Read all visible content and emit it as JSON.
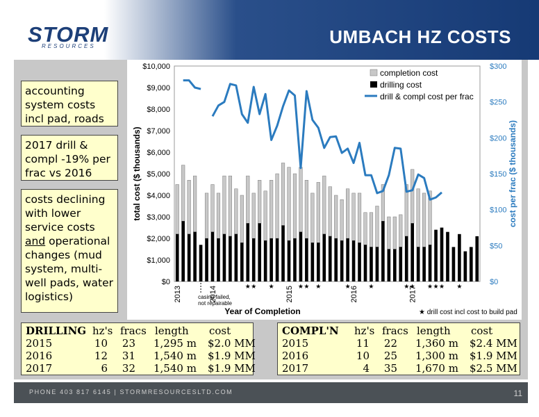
{
  "header": {
    "logo": "STORM",
    "logo_sub": "RESOURCES",
    "title": "UMBACH HZ COSTS"
  },
  "notes": [
    "accounting system costs incl pad, roads",
    "2017 drill & compl -19% per frac vs 2016",
    "costs declining with lower service costs and operational changes (mud system, multi-well pads, water logistics)"
  ],
  "chart_data": {
    "type": "bar",
    "xlabel": "Year of Completion",
    "ylabel": "total cost ($ thousands)",
    "y2label": "cost per frac ($ thousands)",
    "ylim": [
      0,
      10000
    ],
    "y2lim": [
      0,
      300
    ],
    "yticks": [
      "$0",
      "$1,000",
      "$2,000",
      "$3,000",
      "$4,000",
      "$5,000",
      "$6,000",
      "$7,000",
      "$8,000",
      "$9,000",
      "$10,000"
    ],
    "y2ticks": [
      "$0",
      "$50",
      "$100",
      "$150",
      "$200",
      "$250",
      "$300"
    ],
    "year_labels": [
      "2013",
      "2014",
      "2015",
      "2016",
      "2017"
    ],
    "year_positions": [
      0,
      6,
      19,
      30,
      40
    ],
    "annotation": "casing failed, not repairable",
    "footnote": "drill cost incl cost to build pad",
    "star_symbol": "★",
    "legend": [
      "completion cost",
      "drilling cost",
      "drill & compl cost per frac"
    ],
    "colors": {
      "completion": "#c8c8c8",
      "drilling": "#000000",
      "per_frac": "#2b7bbf"
    },
    "drilling": [
      2200,
      2800,
      2200,
      2300,
      1700,
      2000,
      2300,
      2000,
      2200,
      2100,
      2200,
      1800,
      2700,
      2000,
      2700,
      1900,
      2000,
      2000,
      2600,
      1900,
      2000,
      2300,
      2000,
      1800,
      1800,
      2200,
      2100,
      2000,
      1900,
      2000,
      1900,
      1800,
      1700,
      1600,
      1600,
      2800,
      1500,
      1500,
      1600,
      2100,
      2700,
      1600,
      1600,
      1700,
      2400,
      2500,
      2300,
      1600,
      2200,
      1400,
      1600,
      2100
    ],
    "total": [
      4500,
      5400,
      4700,
      4900,
      1700,
      4100,
      4500,
      4100,
      4900,
      4900,
      4300,
      4000,
      4900,
      4100,
      4700,
      4200,
      4700,
      5000,
      5500,
      5300,
      5000,
      5300,
      4700,
      4100,
      4600,
      4900,
      4400,
      4000,
      3800,
      4300,
      4100,
      4100,
      3200,
      3200,
      3500,
      4500,
      3000,
      3000,
      3100,
      4500,
      5200,
      4300,
      4100,
      4200,
      2400,
      2500,
      2300,
      1600,
      2200,
      1400,
      1600,
      2100
    ],
    "per_frac": [
      null,
      280,
      280,
      270,
      268,
      null,
      230,
      245,
      250,
      275,
      273,
      233,
      221,
      271,
      233,
      261,
      197,
      217,
      244,
      266,
      259,
      158,
      265,
      225,
      214,
      186,
      201,
      202,
      179,
      185,
      165,
      193,
      148,
      148,
      123,
      126,
      148,
      186,
      185,
      125,
      127,
      149,
      144,
      114,
      117,
      124,
      null,
      null,
      null,
      null,
      null,
      null
    ],
    "stars": [
      12,
      13,
      16,
      21,
      22,
      24,
      29,
      33,
      39,
      40,
      43,
      44,
      45,
      48
    ]
  },
  "drilling_table": {
    "headers": [
      "DRILLING",
      "hz's",
      "fracs",
      "length",
      "cost"
    ],
    "rows": [
      [
        "2015",
        "10",
        "23",
        "1,295 m",
        "$2.0 MM"
      ],
      [
        "2016",
        "12",
        "31",
        "1,540 m",
        "$1.9 MM"
      ],
      [
        "2017",
        "6",
        "32",
        "1,540 m",
        "$1.9 MM"
      ]
    ]
  },
  "compl_table": {
    "headers": [
      "COMPL'N",
      "hz's",
      "fracs",
      "length",
      "cost"
    ],
    "rows": [
      [
        "2015",
        "11",
        "22",
        "1,360 m",
        "$2.4 MM"
      ],
      [
        "2016",
        "10",
        "25",
        "1,300 m",
        "$1.9 MM"
      ],
      [
        "2017",
        "4",
        "35",
        "1,670 m",
        "$2.5 MM"
      ]
    ]
  },
  "footer": {
    "text": "PHONE 403 817 6145  |  STORMRESOURCESLTD.COM",
    "page": "11"
  }
}
